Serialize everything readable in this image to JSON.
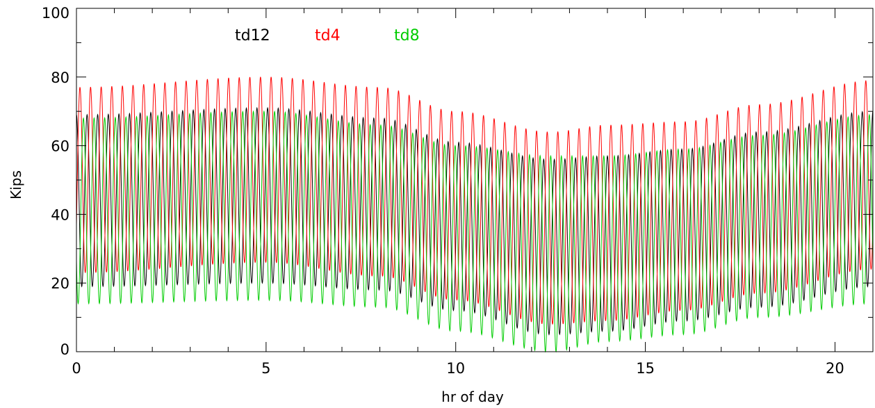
{
  "chart_data": {
    "type": "line",
    "title": "",
    "xlabel": "hr of day",
    "ylabel": "Kips",
    "xlim": [
      0,
      21
    ],
    "ylim": [
      0,
      100
    ],
    "xticks": [
      0,
      5,
      10,
      15,
      20
    ],
    "yticks": [
      0,
      20,
      40,
      60,
      80,
      100
    ],
    "grid": false,
    "legend_placement": "top-left",
    "oscillation_period_hr": 0.28,
    "series": [
      {
        "name": "td12",
        "color": "#000000",
        "phase": 0.0,
        "envelope": [
          {
            "x": 0,
            "max": 69,
            "min": 19
          },
          {
            "x": 5,
            "max": 71,
            "min": 20
          },
          {
            "x": 8,
            "max": 68,
            "min": 18
          },
          {
            "x": 10,
            "max": 61,
            "min": 12
          },
          {
            "x": 12.5,
            "max": 56,
            "min": 5
          },
          {
            "x": 14,
            "max": 57,
            "min": 6
          },
          {
            "x": 16,
            "max": 59,
            "min": 9
          },
          {
            "x": 18,
            "max": 64,
            "min": 13
          },
          {
            "x": 21,
            "max": 70,
            "min": 19
          }
        ]
      },
      {
        "name": "td4",
        "color": "#ff0000",
        "phase": 0.33,
        "envelope": [
          {
            "x": 0,
            "max": 77,
            "min": 23
          },
          {
            "x": 5,
            "max": 80,
            "min": 26
          },
          {
            "x": 8,
            "max": 77,
            "min": 22
          },
          {
            "x": 10,
            "max": 70,
            "min": 15
          },
          {
            "x": 12.5,
            "max": 64,
            "min": 8
          },
          {
            "x": 14,
            "max": 66,
            "min": 9
          },
          {
            "x": 16,
            "max": 67,
            "min": 12
          },
          {
            "x": 18,
            "max": 72,
            "min": 17
          },
          {
            "x": 21,
            "max": 79,
            "min": 24
          }
        ]
      },
      {
        "name": "td8",
        "color": "#00cc00",
        "phase": 0.66,
        "envelope": [
          {
            "x": 0,
            "max": 68,
            "min": 14
          },
          {
            "x": 5,
            "max": 70,
            "min": 15
          },
          {
            "x": 8,
            "max": 66,
            "min": 13
          },
          {
            "x": 10,
            "max": 60,
            "min": 6
          },
          {
            "x": 12.5,
            "max": 57,
            "min": 0
          },
          {
            "x": 14,
            "max": 57,
            "min": 3
          },
          {
            "x": 16,
            "max": 59,
            "min": 5
          },
          {
            "x": 18,
            "max": 63,
            "min": 10
          },
          {
            "x": 21,
            "max": 69,
            "min": 14
          }
        ]
      }
    ]
  }
}
